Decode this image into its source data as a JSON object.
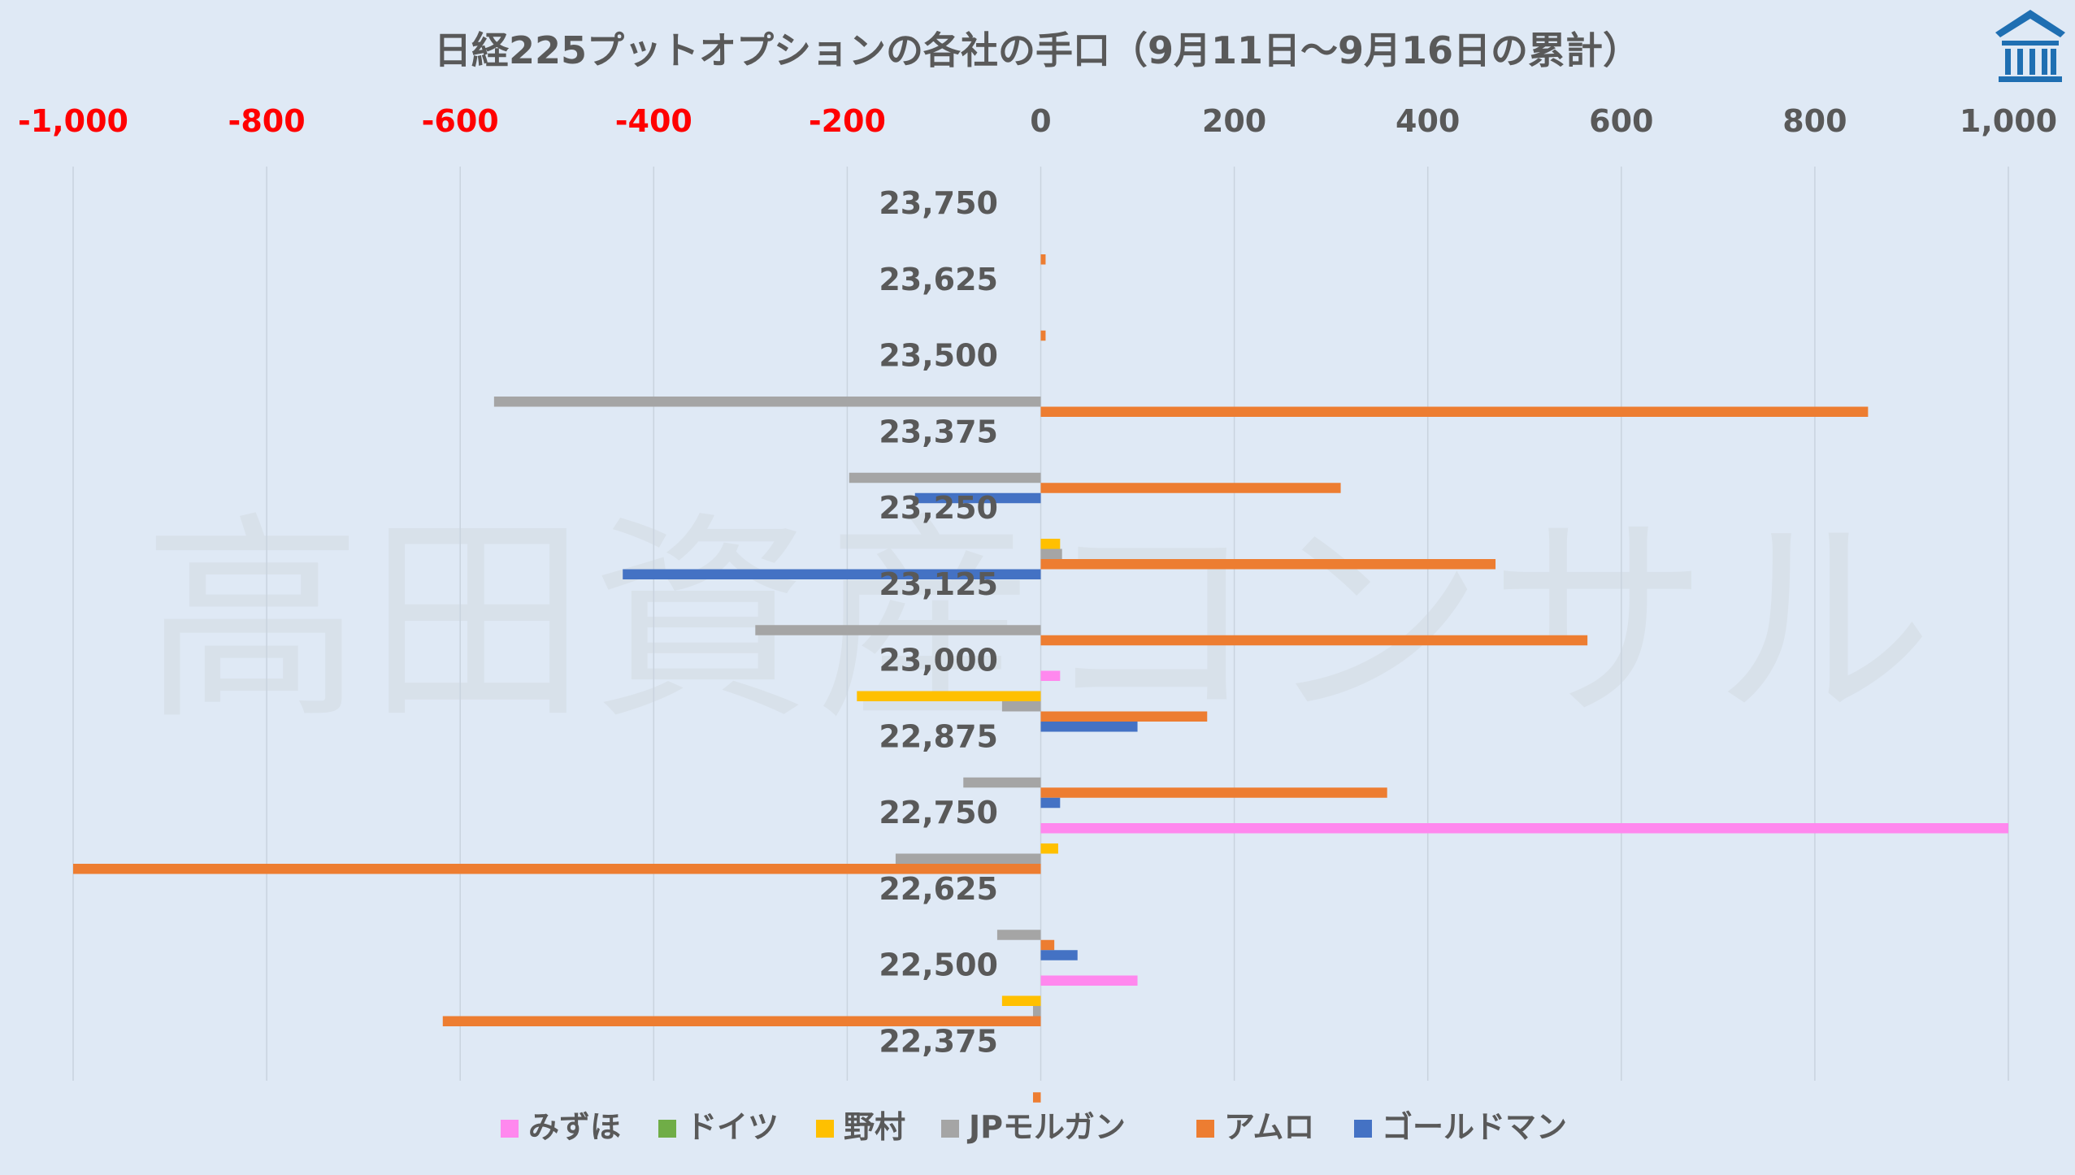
{
  "watermark": "高田資産コンサル",
  "colors": {
    "background": "#dfe9f5",
    "negative_tick": "#ff0000",
    "positive_tick": "#595959",
    "grid": "#c9d3de",
    "logo": "#1f6fb2"
  },
  "logo_icon": "building-logo-icon",
  "chart_data": {
    "type": "bar",
    "orientation": "horizontal",
    "title": "日経225プットオプションの各社の手口（9月11日～9月16日の累計）",
    "xlabel": "",
    "ylabel": "",
    "xlim": [
      -1000,
      1000
    ],
    "xticks": [
      -1000,
      -800,
      -600,
      -400,
      -200,
      0,
      200,
      400,
      600,
      800,
      1000
    ],
    "xtick_labels": [
      "-1,000",
      "-800",
      "-600",
      "-400",
      "-200",
      "0",
      "200",
      "400",
      "600",
      "800",
      "1,000"
    ],
    "grid": true,
    "legend_position": "bottom",
    "categories": [
      "23,750",
      "23,625",
      "23,500",
      "23,375",
      "23,250",
      "23,125",
      "23,000",
      "22,875",
      "22,750",
      "22,625",
      "22,500",
      "22,375"
    ],
    "series": [
      {
        "name": "みずほ",
        "color": "#ff88ee",
        "values": [
          0,
          0,
          0,
          0,
          0,
          0,
          20,
          0,
          1000,
          0,
          100,
          0
        ]
      },
      {
        "name": "ドイツ",
        "color": "#70ad47",
        "values": [
          0,
          0,
          0,
          0,
          0,
          0,
          0,
          0,
          0,
          0,
          0,
          0
        ]
      },
      {
        "name": "野村",
        "color": "#ffc000",
        "values": [
          0,
          0,
          0,
          0,
          20,
          0,
          -190,
          0,
          18,
          0,
          -40,
          0
        ]
      },
      {
        "name": "JPモルガン",
        "color": "#a5a5a5",
        "values": [
          0,
          0,
          -565,
          -198,
          22,
          -295,
          -40,
          -80,
          -150,
          -45,
          -8,
          0
        ]
      },
      {
        "name": "アムロ",
        "color": "#ed7d31",
        "values": [
          5,
          5,
          855,
          310,
          470,
          565,
          172,
          358,
          -1000,
          14,
          -618,
          -8
        ]
      },
      {
        "name": "ゴールドマン",
        "color": "#4472c4",
        "values": [
          0,
          0,
          0,
          -130,
          -432,
          0,
          100,
          20,
          0,
          38,
          0,
          0
        ]
      }
    ]
  }
}
